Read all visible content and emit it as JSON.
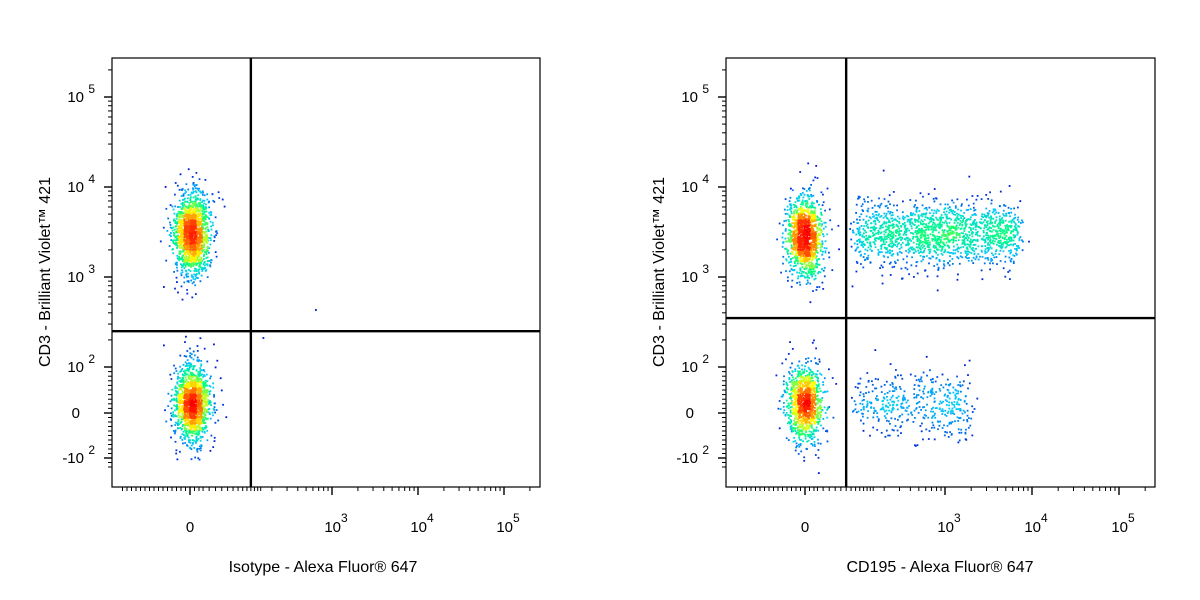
{
  "chart_data": [
    {
      "type": "scatter",
      "panel": "left",
      "title": "",
      "xlabel": "Isotype - Alexa Fluor® 647",
      "ylabel": "CD3 - Brilliant Violet™ 421",
      "x_scale": "biexponential",
      "y_scale": "biexponential",
      "x_ticks": [
        {
          "label": "0",
          "value": 0
        },
        {
          "label": "10",
          "sup": "3",
          "value": 1000
        },
        {
          "label": "10",
          "sup": "4",
          "value": 10000
        },
        {
          "label": "10",
          "sup": "5",
          "value": 100000
        }
      ],
      "y_ticks": [
        {
          "label": "-10",
          "sup": "2",
          "value": -100
        },
        {
          "label": "0",
          "sup": "",
          "value": 0
        },
        {
          "label": "10",
          "sup": "2",
          "value": 100
        },
        {
          "label": "10",
          "sup": "3",
          "value": 1000
        },
        {
          "label": "10",
          "sup": "4",
          "value": 10000
        },
        {
          "label": "10",
          "sup": "5",
          "value": 100000
        }
      ],
      "quadrant_gate": {
        "x": 120,
        "y": 250
      },
      "populations": [
        {
          "name": "CD3+ T cells",
          "x_center": 5,
          "y_center": 3000,
          "count": 1600
        },
        {
          "name": "CD3- cells",
          "x_center": 5,
          "y_center": 20,
          "count": 1500
        }
      ],
      "outliers": [
        {
          "x": 650,
          "y": 430
        },
        {
          "x": 160,
          "y": 210
        }
      ],
      "density_colormap": [
        "#0000cc",
        "#00c8ff",
        "#00ff80",
        "#ffff00",
        "#ff8000",
        "#ff0000"
      ]
    },
    {
      "type": "scatter",
      "panel": "right",
      "title": "",
      "xlabel": "CD195 - Alexa Fluor® 647",
      "ylabel": "CD3 - Brilliant Violet™ 421",
      "x_scale": "biexponential",
      "y_scale": "biexponential",
      "x_ticks": [
        {
          "label": "0",
          "value": 0
        },
        {
          "label": "10",
          "sup": "3",
          "value": 1000
        },
        {
          "label": "10",
          "sup": "4",
          "value": 10000
        },
        {
          "label": "10",
          "sup": "5",
          "value": 100000
        }
      ],
      "y_ticks": [
        {
          "label": "-10",
          "sup": "2",
          "value": -100
        },
        {
          "label": "0",
          "sup": "",
          "value": 0
        },
        {
          "label": "10",
          "sup": "2",
          "value": 100
        },
        {
          "label": "10",
          "sup": "3",
          "value": 1000
        },
        {
          "label": "10",
          "sup": "4",
          "value": 10000
        },
        {
          "label": "10",
          "sup": "5",
          "value": 100000
        }
      ],
      "quadrant_gate": {
        "x": 80,
        "y": 350
      },
      "populations": [
        {
          "name": "CD3+ CD195-",
          "x_center": 0,
          "y_center": 2800,
          "count": 1300
        },
        {
          "name": "CD3+ CD195+",
          "x_range": [
            100,
            7000
          ],
          "y_center": 3000,
          "count": 1600
        },
        {
          "name": "CD3- CD195-",
          "x_center": 0,
          "y_center": 20,
          "count": 1100
        },
        {
          "name": "CD3- CD195+",
          "x_range": [
            100,
            2000
          ],
          "y_center": 20,
          "count": 450
        }
      ],
      "density_colormap": [
        "#0000cc",
        "#00c8ff",
        "#00ff80",
        "#ffff00",
        "#ff8000",
        "#ff0000"
      ]
    }
  ]
}
